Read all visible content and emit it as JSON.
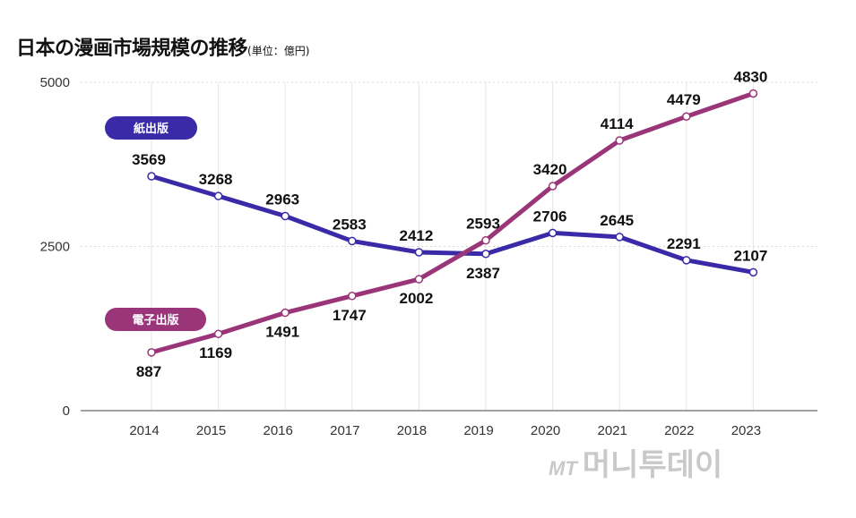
{
  "header": {
    "title": "日本の漫画市場規模の推移",
    "subtitle": "(単位：億円)"
  },
  "watermark": {
    "logo": "MT",
    "name": "머니투데이"
  },
  "chart_data": {
    "type": "line",
    "title": "日本の漫画市場規模の推移",
    "subtitle": "(単位：億円)",
    "xlabel": "",
    "ylabel": "",
    "x": [
      "2014",
      "2015",
      "2016",
      "2017",
      "2018",
      "2019",
      "2020",
      "2021",
      "2022",
      "2023"
    ],
    "ylim": [
      0,
      5000
    ],
    "yticks": [
      0,
      2500,
      5000
    ],
    "grid": true,
    "legend": "inline-pills",
    "series": [
      {
        "name": "紙出版",
        "color": "#3b2aa8",
        "values": [
          3569,
          3268,
          2963,
          2583,
          2412,
          2387,
          2706,
          2645,
          2291,
          2107
        ],
        "label_pos": [
          "above",
          "above",
          "above",
          "above",
          "above",
          "below",
          "above",
          "above",
          "above",
          "above"
        ]
      },
      {
        "name": "電子出版",
        "color": "#9b3579",
        "values": [
          887,
          1169,
          1491,
          1747,
          2002,
          2593,
          3420,
          4114,
          4479,
          4830
        ],
        "label_pos": [
          "below",
          "below",
          "below",
          "below",
          "below",
          "above",
          "above",
          "above",
          "above",
          "above"
        ]
      }
    ]
  }
}
